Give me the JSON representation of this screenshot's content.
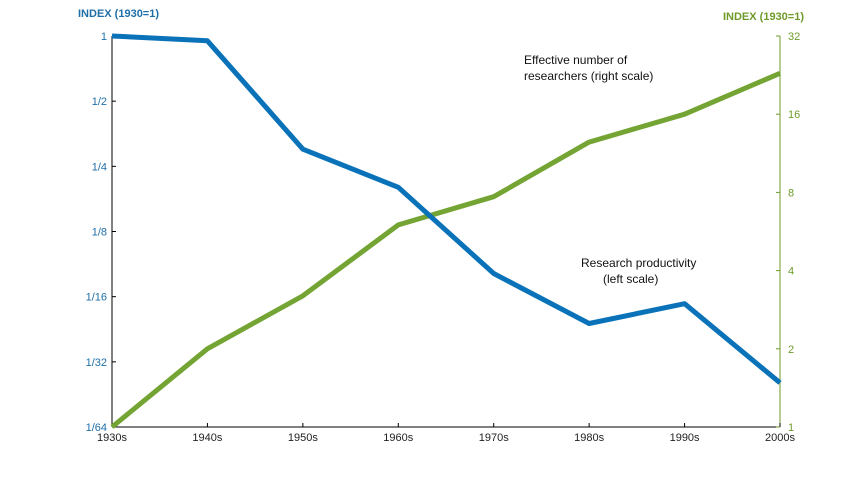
{
  "chart_data": {
    "type": "line",
    "categories": [
      "1930s",
      "1940s",
      "1950s",
      "1960s",
      "1970s",
      "1980s",
      "1990s",
      "2000s"
    ],
    "left_axis": {
      "title": "INDEX (1930=1)",
      "scale": "log2",
      "ylim": [
        0.015625,
        1
      ],
      "ticks": [
        1,
        0.5,
        0.25,
        0.125,
        0.0625,
        0.03125,
        0.015625
      ],
      "tick_labels": [
        "1",
        "1/2",
        "1/4",
        "1/8",
        "1/16",
        "1/32",
        "1/64"
      ],
      "color": "#1f6fa8"
    },
    "right_axis": {
      "title": "INDEX (1930=1)",
      "scale": "log2",
      "ylim": [
        1,
        32
      ],
      "ticks": [
        1,
        2,
        4,
        8,
        16,
        32
      ],
      "tick_labels": [
        "1",
        "2",
        "4",
        "8",
        "16",
        "32"
      ],
      "color": "#6f9a2a"
    },
    "series": [
      {
        "axis": "left",
        "color": "#0a72b8",
        "values": [
          1,
          0.95,
          0.3,
          0.2,
          0.08,
          0.047,
          0.058,
          0.025
        ]
      },
      {
        "axis": "right",
        "color": "#74a534",
        "values": [
          1,
          2.0,
          3.2,
          6.0,
          7.7,
          12.5,
          16.0,
          23.0
        ]
      }
    ],
    "annotations": [
      {
        "lines": [
          "Effective number of",
          "researchers (right scale)"
        ]
      },
      {
        "lines": [
          "Research productivity",
          "(left scale)"
        ]
      }
    ],
    "grid": false
  }
}
